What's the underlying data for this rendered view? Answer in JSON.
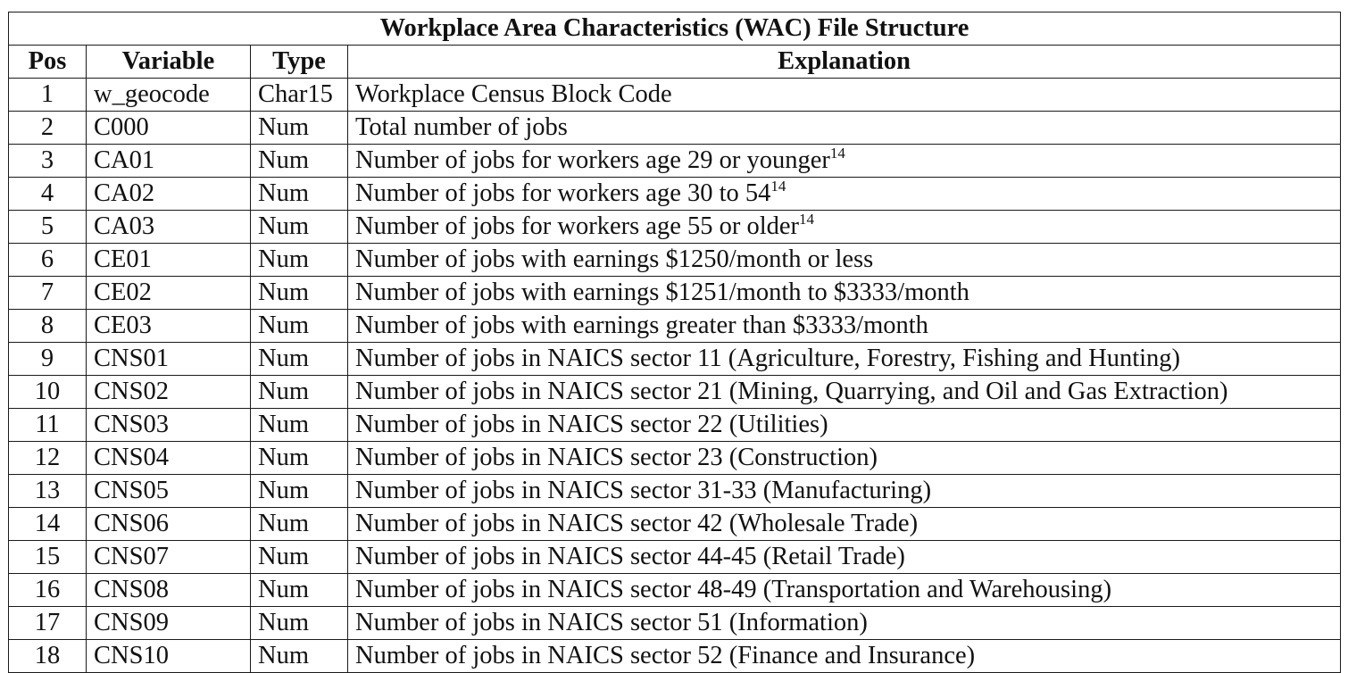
{
  "table": {
    "title": "Workplace Area Characteristics (WAC) File Structure",
    "headers": {
      "pos": "Pos",
      "variable": "Variable",
      "type": "Type",
      "explanation": "Explanation"
    },
    "rows": [
      {
        "pos": "1",
        "variable": "w_geocode",
        "type": "Char15",
        "explanation": "Workplace Census Block Code",
        "note": ""
      },
      {
        "pos": "2",
        "variable": "C000",
        "type": "Num",
        "explanation": "Total number of jobs",
        "note": ""
      },
      {
        "pos": "3",
        "variable": "CA01",
        "type": "Num",
        "explanation": "Number of jobs for workers age 29 or younger",
        "note": "14"
      },
      {
        "pos": "4",
        "variable": "CA02",
        "type": "Num",
        "explanation": "Number of jobs for workers age 30 to 54",
        "note": "14"
      },
      {
        "pos": "5",
        "variable": "CA03",
        "type": "Num",
        "explanation": "Number of jobs for workers age 55 or older",
        "note": "14"
      },
      {
        "pos": "6",
        "variable": "CE01",
        "type": "Num",
        "explanation": "Number of jobs with earnings $1250/month or less",
        "note": ""
      },
      {
        "pos": "7",
        "variable": "CE02",
        "type": "Num",
        "explanation": "Number of jobs with earnings $1251/month to $3333/month",
        "note": ""
      },
      {
        "pos": "8",
        "variable": "CE03",
        "type": "Num",
        "explanation": "Number of jobs with earnings greater than $3333/month",
        "note": ""
      },
      {
        "pos": "9",
        "variable": "CNS01",
        "type": "Num",
        "explanation": "Number of jobs in NAICS sector 11 (Agriculture, Forestry, Fishing and Hunting)",
        "note": ""
      },
      {
        "pos": "10",
        "variable": "CNS02",
        "type": "Num",
        "explanation": "Number of jobs in NAICS sector 21 (Mining, Quarrying, and Oil and Gas Extraction)",
        "note": ""
      },
      {
        "pos": "11",
        "variable": "CNS03",
        "type": "Num",
        "explanation": "Number of jobs in NAICS sector 22 (Utilities)",
        "note": ""
      },
      {
        "pos": "12",
        "variable": "CNS04",
        "type": "Num",
        "explanation": "Number of jobs in NAICS sector 23 (Construction)",
        "note": ""
      },
      {
        "pos": "13",
        "variable": "CNS05",
        "type": "Num",
        "explanation": "Number of jobs in NAICS sector 31-33 (Manufacturing)",
        "note": ""
      },
      {
        "pos": "14",
        "variable": "CNS06",
        "type": "Num",
        "explanation": "Number of jobs in NAICS sector 42 (Wholesale Trade)",
        "note": ""
      },
      {
        "pos": "15",
        "variable": "CNS07",
        "type": "Num",
        "explanation": "Number of jobs in NAICS sector 44-45 (Retail Trade)",
        "note": ""
      },
      {
        "pos": "16",
        "variable": "CNS08",
        "type": "Num",
        "explanation": "Number of jobs in NAICS sector 48-49 (Transportation and Warehousing)",
        "note": ""
      },
      {
        "pos": "17",
        "variable": "CNS09",
        "type": "Num",
        "explanation": "Number of jobs in NAICS sector 51 (Information)",
        "note": ""
      },
      {
        "pos": "18",
        "variable": "CNS10",
        "type": "Num",
        "explanation": "Number of jobs in NAICS sector 52 (Finance and Insurance)",
        "note": ""
      }
    ]
  }
}
